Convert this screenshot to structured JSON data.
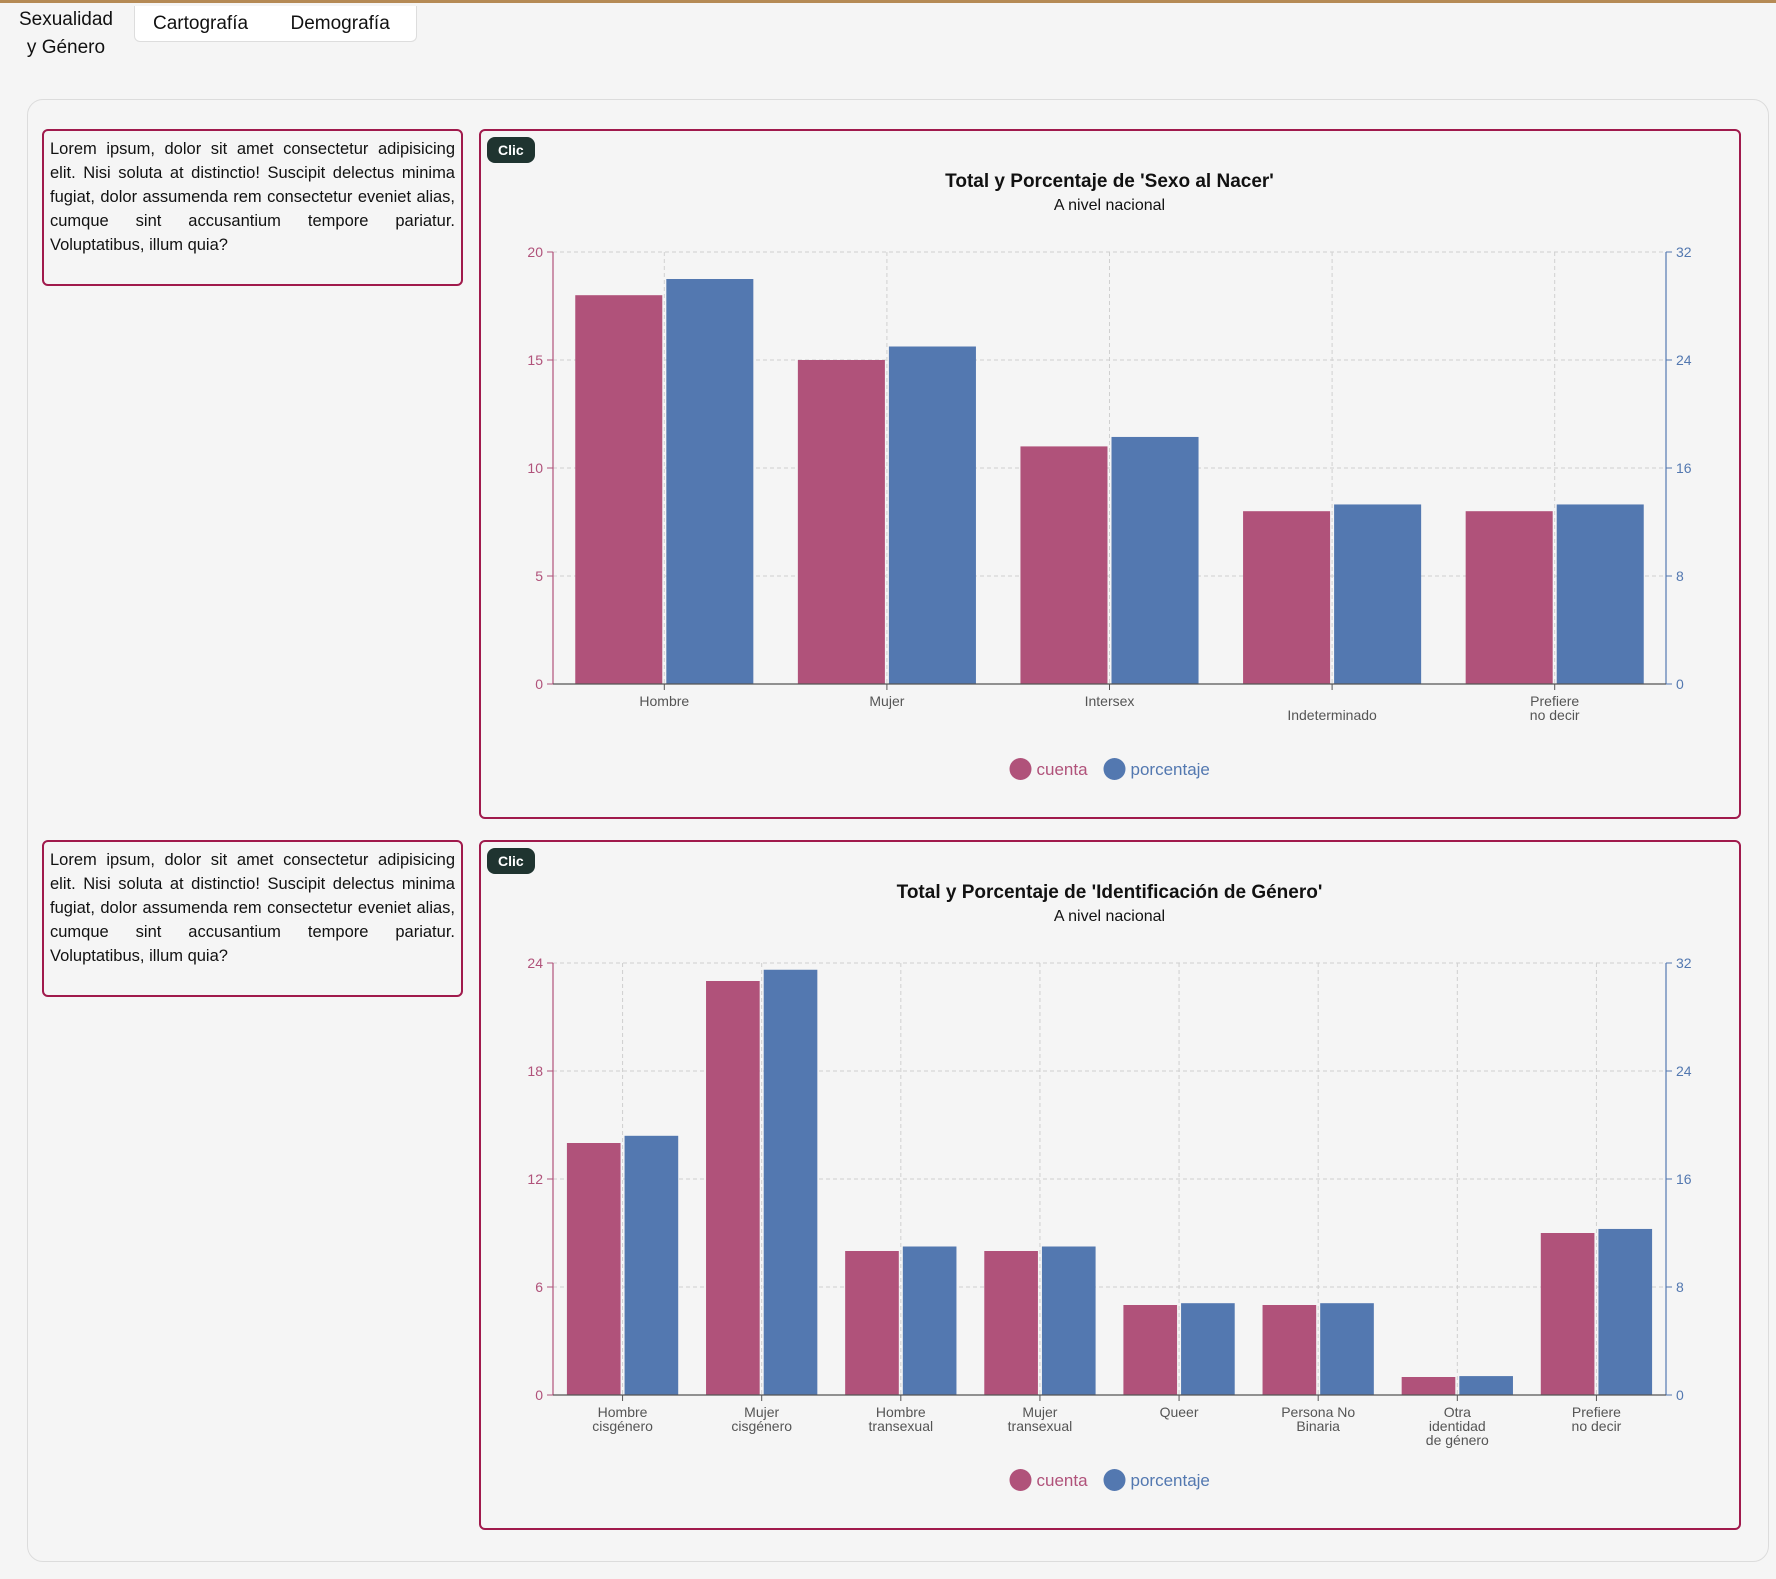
{
  "tabs": {
    "active_line1": "Sexualidad",
    "active_line2": "y Género",
    "cartografia": "Cartografía",
    "demografia": "Demografía"
  },
  "blocks": [
    {
      "description": "Lorem ipsum, dolor sit amet consectetur adipisicing elit. Nisi soluta at distinctio! Suscipit delectus minima fugiat, dolor assumenda rem consectetur eveniet alias, cumque sint accusantium tempore pariatur. Voluptatibus, illum quia?",
      "button": "Clic"
    },
    {
      "description": "Lorem ipsum, dolor sit amet consectetur adipisicing elit. Nisi soluta at distinctio! Suscipit delectus minima fugiat, dolor assumenda rem consectetur eveniet alias, cumque sint accusantium tempore pariatur. Voluptatibus, illum quia?",
      "button": "Clic"
    }
  ],
  "colors": {
    "cuenta": "#b0527a",
    "porcentaje": "#5378b0",
    "border": "#a01a4c"
  },
  "chart_data": [
    {
      "type": "bar",
      "title": "Total y Porcentaje de 'Sexo al Nacer'",
      "subtitle": "A nivel nacional",
      "categories": [
        [
          "Hombre"
        ],
        [
          "Mujer"
        ],
        [
          "Intersex"
        ],
        [
          "",
          "Indeterminado"
        ],
        [
          "Prefiere",
          "no decir"
        ]
      ],
      "series": [
        {
          "name": "cuenta",
          "axis": "left",
          "values": [
            18,
            15,
            11,
            8,
            8
          ]
        },
        {
          "name": "porcentaje",
          "axis": "right",
          "values": [
            30,
            25,
            18.3,
            13.3,
            13.3
          ]
        }
      ],
      "ylim_left": [
        0,
        20
      ],
      "yticks_left": [
        0,
        5,
        10,
        15,
        20
      ],
      "ylim_right": [
        0,
        32
      ],
      "yticks_right": [
        0,
        8,
        16,
        24,
        32
      ],
      "legend": [
        "cuenta",
        "porcentaje"
      ]
    },
    {
      "type": "bar",
      "title": "Total y Porcentaje de 'Identificación de Género'",
      "subtitle": "A nivel nacional",
      "categories": [
        [
          "Hombre",
          "cisgénero"
        ],
        [
          "Mujer",
          "cisgénero"
        ],
        [
          "Hombre",
          "transexual"
        ],
        [
          "Mujer",
          "transexual"
        ],
        [
          "Queer"
        ],
        [
          "Persona No",
          "Binaria"
        ],
        [
          "Otra",
          "identidad",
          "de género"
        ],
        [
          "Prefiere",
          "no decir"
        ]
      ],
      "series": [
        {
          "name": "cuenta",
          "axis": "left",
          "values": [
            14,
            23,
            8,
            8,
            5,
            5,
            1,
            9
          ]
        },
        {
          "name": "porcentaje",
          "axis": "right",
          "values": [
            19.2,
            31.5,
            11,
            11,
            6.8,
            6.8,
            1.4,
            12.3
          ]
        }
      ],
      "ylim_left": [
        0,
        24
      ],
      "yticks_left": [
        0,
        6,
        12,
        18,
        24
      ],
      "ylim_right": [
        0,
        32
      ],
      "yticks_right": [
        0,
        8,
        16,
        24,
        32
      ],
      "legend": [
        "cuenta",
        "porcentaje"
      ]
    }
  ]
}
